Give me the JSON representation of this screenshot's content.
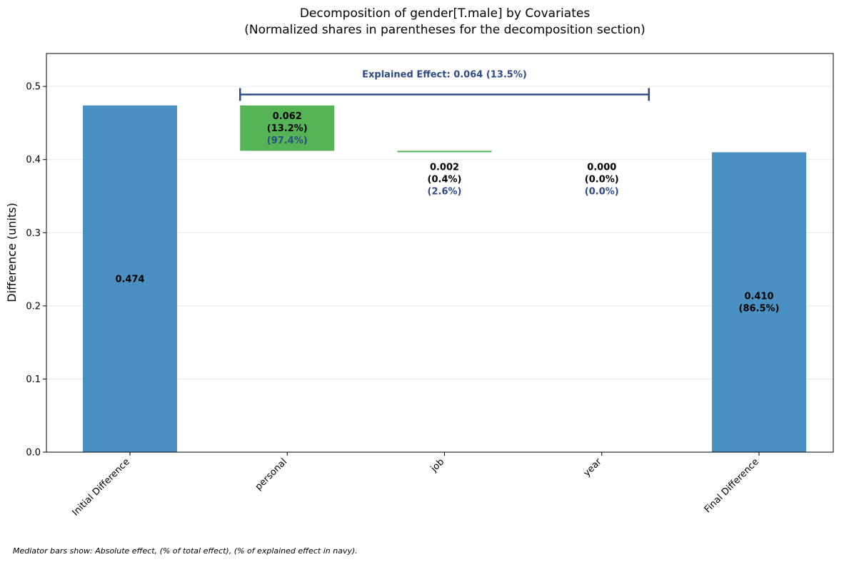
{
  "chart_data": {
    "type": "waterfall",
    "title_line1": "Decomposition of gender[T.male] by Covariates",
    "title_line2": "(Normalized shares in parentheses for the decomposition section)",
    "ylabel": "Difference (units)",
    "xlabel": "",
    "ylim": [
      0,
      0.545
    ],
    "yticks": [
      0.0,
      0.1,
      0.2,
      0.3,
      0.4,
      0.5
    ],
    "ytick_labels": [
      "0.0",
      "0.1",
      "0.2",
      "0.3",
      "0.4",
      "0.5"
    ],
    "grid": true,
    "categories": [
      "Initial Difference",
      "personal",
      "job",
      "year",
      "Final Difference"
    ],
    "bars": [
      {
        "category": "Initial Difference",
        "kind": "total",
        "start": 0,
        "end": 0.474,
        "color": "#4a90c2",
        "labels": [
          "0.474"
        ]
      },
      {
        "category": "personal",
        "kind": "mediator",
        "start": 0.474,
        "end": 0.412,
        "color": "#55b455",
        "labels": [
          "0.062",
          "(13.2%)"
        ],
        "share_label": "(97.4%)"
      },
      {
        "category": "job",
        "kind": "mediator",
        "start": 0.412,
        "end": 0.41,
        "color": "#55b455",
        "labels": [
          "0.002",
          "(0.4%)"
        ],
        "share_label": "(2.6%)"
      },
      {
        "category": "year",
        "kind": "mediator",
        "start": 0.41,
        "end": 0.41,
        "color": "#55b455",
        "labels": [
          "0.000",
          "(0.0%)"
        ],
        "share_label": "(0.0%)"
      },
      {
        "category": "Final Difference",
        "kind": "total",
        "start": 0,
        "end": 0.41,
        "color": "#4a90c2",
        "labels": [
          "0.410",
          "(86.5%)"
        ]
      }
    ],
    "bracket": {
      "label": "Explained Effect: 0.064 (13.5%)",
      "y": 0.489,
      "from_category": "personal",
      "to_category": "year",
      "color": "#2e4a87"
    },
    "footnote": "Mediator bars show: Absolute effect, (% of total effect), (% of explained effect in navy)."
  }
}
